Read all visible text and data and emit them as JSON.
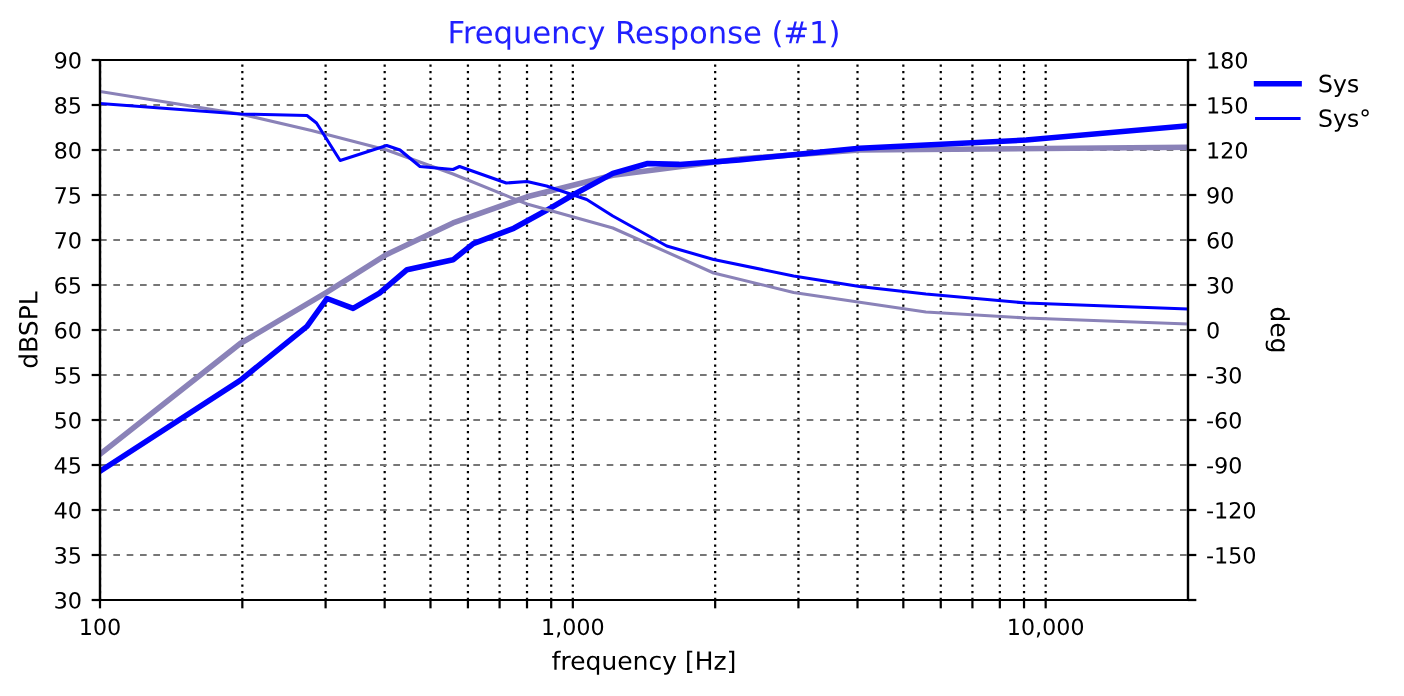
{
  "chart_data": {
    "type": "line",
    "title": "Frequency Response (#1)",
    "xlabel": "frequency [Hz]",
    "ylabel": "dBSPL",
    "y2label": "deg",
    "log": "x",
    "grid": true,
    "legend": "top right",
    "xlim": [
      100,
      20000
    ],
    "xticks": [
      {
        "value": 100,
        "label": "100"
      },
      {
        "value": 200,
        "label": null
      },
      {
        "value": 300,
        "label": null
      },
      {
        "value": 400,
        "label": null
      },
      {
        "value": 500,
        "label": null
      },
      {
        "value": 600,
        "label": null
      },
      {
        "value": 700,
        "label": null
      },
      {
        "value": 800,
        "label": null
      },
      {
        "value": 900,
        "label": null
      },
      {
        "value": 1000,
        "label": "1,000"
      },
      {
        "value": 2000,
        "label": null
      },
      {
        "value": 3000,
        "label": null
      },
      {
        "value": 4000,
        "label": null
      },
      {
        "value": 5000,
        "label": null
      },
      {
        "value": 6000,
        "label": null
      },
      {
        "value": 7000,
        "label": null
      },
      {
        "value": 8000,
        "label": null
      },
      {
        "value": 9000,
        "label": null
      },
      {
        "value": 10000,
        "label": "10,000"
      }
    ],
    "ylim": [
      30,
      90
    ],
    "yticks": [
      30,
      35,
      40,
      45,
      50,
      55,
      60,
      65,
      70,
      75,
      80,
      85,
      90
    ],
    "y2lim": [
      -180,
      180
    ],
    "y2ticks": [
      {
        "value": -180,
        "label": null
      },
      -150,
      -120,
      -90,
      -60,
      -30,
      0,
      30,
      60,
      90,
      120,
      150,
      180
    ],
    "series": [
      {
        "color": "#8a82b8",
        "x": [
          100,
          198,
          302,
          404,
          558,
          800,
          1215,
          2250,
          4040,
          20000
        ],
        "values": [
          46.2,
          58.5,
          64.2,
          68.4,
          71.9,
          74.8,
          77.2,
          79.0,
          80.0,
          80.3
        ]
      },
      {
        "color": "#8a82b8",
        "axis": "y2",
        "x": [
          100,
          198,
          280,
          404,
          558,
          800,
          1215,
          1985,
          2930,
          5580,
          9090,
          20000
        ],
        "values": [
          159,
          144,
          133,
          120,
          104,
          84,
          68,
          38,
          25,
          12,
          8,
          4
        ]
      },
      {
        "name": "Sys",
        "color": "#0000ff",
        "x": [
          100,
          198,
          274,
          302,
          343,
          390,
          446,
          558,
          616,
          750,
          880,
          1000,
          1215,
          1440,
          1680,
          2250,
          4040,
          9090,
          20000
        ],
        "values": [
          44.3,
          54.4,
          60.4,
          63.5,
          62.4,
          64.1,
          66.7,
          67.8,
          69.6,
          71.3,
          73.3,
          75.0,
          77.4,
          78.5,
          78.4,
          78.9,
          80.2,
          81.1,
          82.7
        ]
      },
      {
        "name": "Sys°",
        "color": "#0000ff",
        "axis": "y2",
        "x": [
          100,
          198,
          274,
          287,
          322,
          404,
          431,
          475,
          558,
          576,
          723,
          800,
          880,
          1070,
          1215,
          1580,
          1985,
          2930,
          4040,
          5580,
          9090,
          20000
        ],
        "values": [
          151,
          144,
          143,
          138,
          113,
          123,
          120,
          109,
          107,
          109,
          98,
          99,
          96,
          87,
          76,
          56,
          47,
          36,
          29,
          24,
          18,
          14
        ]
      }
    ]
  }
}
